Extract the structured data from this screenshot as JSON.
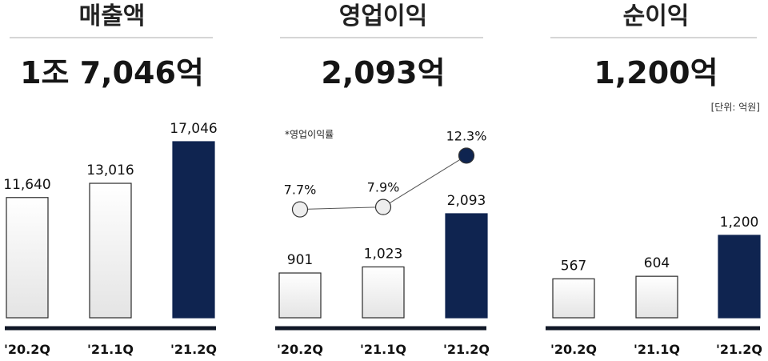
{
  "colors": {
    "highlight": "#0f2450",
    "bar_light_top": "#ffffff",
    "bar_light_bottom": "#e4e4e4",
    "bar_stroke": "#2a2a2a",
    "baseline": "#111827",
    "divider": "#c9c9c9",
    "marker_light": "#eeeeee"
  },
  "unit_note": "[단위: 억원]",
  "chart_data": [
    {
      "type": "bar",
      "title": "매출액",
      "headline": "1조 7,046억",
      "categories": [
        "'20.2Q",
        "'21.1Q",
        "'21.2Q"
      ],
      "values": [
        11640,
        13016,
        17046
      ],
      "value_labels": [
        "11,640",
        "13,016",
        "17,046"
      ],
      "highlight_index": 2
    },
    {
      "type": "bar",
      "title": "영업이익",
      "headline": "2,093억",
      "categories": [
        "'20.2Q",
        "'21.1Q",
        "'21.2Q"
      ],
      "values": [
        901,
        1023,
        2093
      ],
      "value_labels": [
        "901",
        "1,023",
        "2,093"
      ],
      "highlight_index": 2,
      "line_series": {
        "name": "*영업이익률",
        "values": [
          7.7,
          7.9,
          12.3
        ],
        "labels": [
          "7.7%",
          "7.9%",
          "12.3%"
        ]
      }
    },
    {
      "type": "bar",
      "title": "순이익",
      "headline": "1,200억",
      "categories": [
        "'20.2Q",
        "'21.1Q",
        "'21.2Q"
      ],
      "values": [
        567,
        604,
        1200
      ],
      "value_labels": [
        "567",
        "604",
        "1,200"
      ],
      "highlight_index": 2
    }
  ]
}
